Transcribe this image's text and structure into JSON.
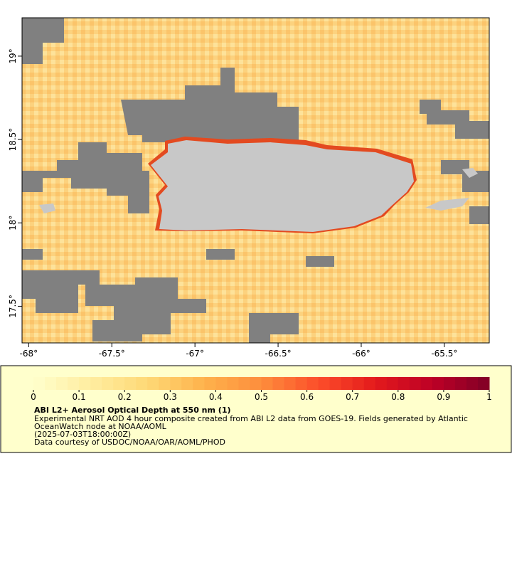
{
  "map": {
    "xlim": [
      -68.04,
      -65.23
    ],
    "ylim": [
      17.28,
      19.23
    ],
    "xticks": [
      {
        "value": -68,
        "label": "-68°"
      },
      {
        "value": -67.5,
        "label": "-67.5°"
      },
      {
        "value": -67,
        "label": "-67°"
      },
      {
        "value": -66.5,
        "label": "-66.5°"
      },
      {
        "value": -66,
        "label": "-66°"
      },
      {
        "value": -65.5,
        "label": "-65.5°"
      }
    ],
    "yticks": [
      {
        "value": 17.5,
        "label": "17.5°"
      },
      {
        "value": 18,
        "label": "18°"
      },
      {
        "value": 18.5,
        "label": "18.5°"
      },
      {
        "value": 19,
        "label": "19°"
      }
    ]
  },
  "colorbar": {
    "clim": [
      0,
      1
    ],
    "ticks": [
      0,
      0.1,
      0.2,
      0.3,
      0.4,
      0.5,
      0.6,
      0.7,
      0.8,
      0.9,
      1
    ],
    "colors": [
      "#ffffcc",
      "#ffeda0",
      "#fed976",
      "#feb24c",
      "#fd8d3c",
      "#fc4e2a",
      "#e31a1c",
      "#bd0026",
      "#800026"
    ]
  },
  "legend": {
    "title": "ABI L2+ Aerosol Optical Depth at 550 nm (1)",
    "lines": [
      "Experimental NRT AOD 4 hour composite created from ABI L2 data from GOES-19. Fields generated by Atlantic",
      "OceanWatch node at NOAA/AOML",
      "(2025-07-03T18:00:00Z)",
      "Data courtesy of USDOC/NOAA/OAR/AOML/PHOD"
    ]
  }
}
